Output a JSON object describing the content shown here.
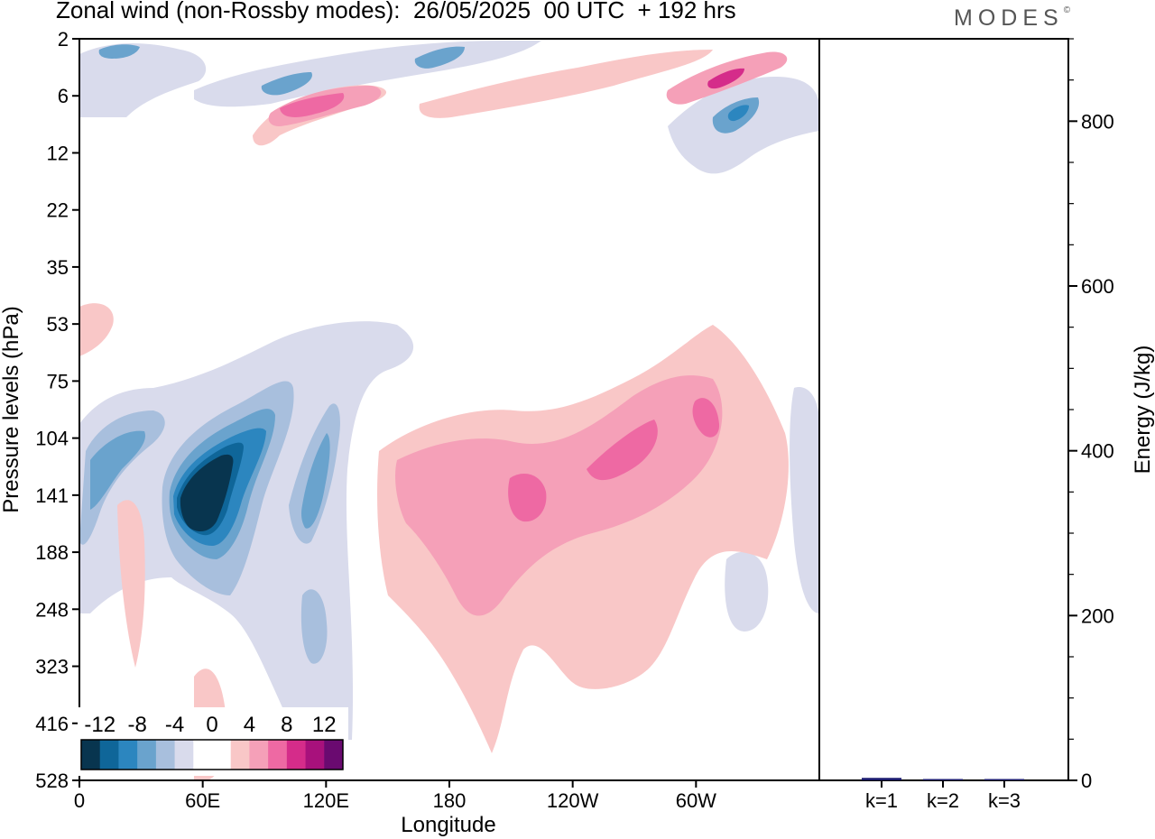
{
  "header": {
    "title": "Zonal wind (non-Rossby modes):  26/05/2025  00 UTC  + 192 hrs",
    "logo_text": "MODES",
    "logo_mark": "©"
  },
  "chart_data": [
    {
      "type": "heatmap",
      "title": "Zonal wind (non-Rossby modes):  26/05/2025  00 UTC  + 192 hrs",
      "xlabel": "Longitude",
      "ylabel": "Pressure levels (hPa)",
      "x_ticks": [
        "0",
        "60E",
        "120E",
        "180",
        "120W",
        "60W"
      ],
      "y_levels": [
        "2",
        "6",
        "12",
        "22",
        "35",
        "53",
        "75",
        "104",
        "141",
        "188",
        "248",
        "323",
        "416",
        "528"
      ],
      "colorbar": {
        "labels": [
          "-12",
          "-8",
          "-4",
          "0",
          "4",
          "8",
          "12"
        ],
        "colors": [
          "#08354f",
          "#0f6699",
          "#2c86bf",
          "#6aa3cd",
          "#a8bfdd",
          "#d9dbec",
          "#ffffff",
          "#ffffff",
          "#f9c7c7",
          "#f5a0b8",
          "#ee69a3",
          "#d52c8a",
          "#a8117c",
          "#6a0a70"
        ]
      },
      "features": [
        {
          "sign": "negative",
          "longitude": 40,
          "level": "141",
          "min_value": -14
        },
        {
          "sign": "negative",
          "longitude": 15,
          "level": "104",
          "min_value": -8
        },
        {
          "sign": "negative",
          "longitude": 90,
          "level": "141",
          "min_value": -8
        },
        {
          "sign": "negative",
          "longitude": 120,
          "level": "141",
          "min_value": -8
        },
        {
          "sign": "negative",
          "longitude": 75,
          "level": "6",
          "min_value": -8
        },
        {
          "sign": "negative",
          "longitude": 320,
          "level": "6",
          "min_value": -10
        },
        {
          "sign": "positive",
          "longitude": 125,
          "level": "6",
          "min_value": 10
        },
        {
          "sign": "positive",
          "longitude": 310,
          "level": "2",
          "min_value": 8
        },
        {
          "sign": "positive",
          "longitude": 220,
          "level": "141",
          "min_value": 8
        },
        {
          "sign": "positive",
          "longitude": 265,
          "level": "141",
          "min_value": 10
        },
        {
          "sign": "positive",
          "longitude": 300,
          "level": "104",
          "min_value": 8
        },
        {
          "sign": "positive",
          "longitude": 170,
          "level": "141",
          "min_value": 6
        }
      ]
    },
    {
      "type": "bar",
      "ylabel": "Energy (J/kg)",
      "categories": [
        "k=1",
        "k=2",
        "k=3"
      ],
      "values": [
        3,
        1.5,
        1
      ],
      "ylim": [
        0,
        900
      ],
      "y_ticks": [
        "0",
        "200",
        "400",
        "600",
        "800"
      ],
      "bar_color": "#1b1b6f"
    }
  ]
}
